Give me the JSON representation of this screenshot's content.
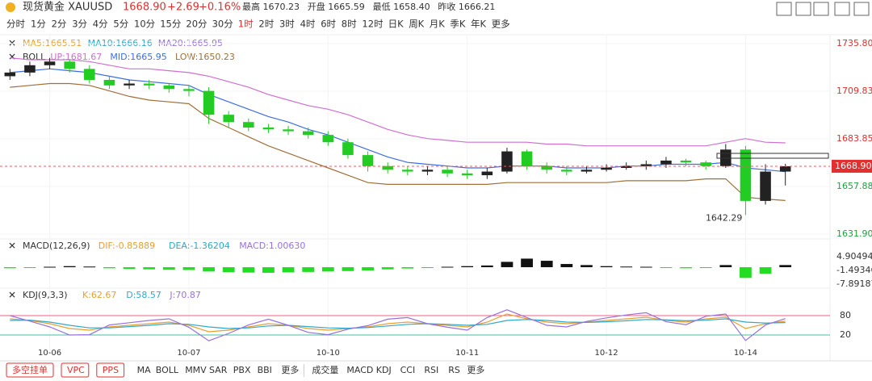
{
  "header": {
    "symbol": "现货黄金 XAUUSD",
    "price": "1668.90",
    "change": "+2.69",
    "pct": "+0.16%",
    "stats": [
      "最高 1670.23",
      "开盘 1665.59",
      "最低 1658.40",
      "昨收 1666.21"
    ]
  },
  "periods": [
    "分时",
    "1分",
    "2分",
    "3分",
    "4分",
    "5分",
    "10分",
    "15分",
    "20分",
    "30分",
    "1时",
    "2时",
    "3时",
    "4时",
    "6时",
    "8时",
    "12时",
    "日K",
    "周K",
    "月K",
    "季K",
    "年K",
    "更多"
  ],
  "active_period": "1时",
  "bottom": {
    "buttons": [
      "多空挂单",
      "VPC",
      "PPS"
    ],
    "main_indicators": [
      "MA",
      "BOLL",
      "MMV",
      "SAR",
      "PBX",
      "BBI",
      "更多"
    ],
    "sub_indicators": [
      "成交量",
      "MACD",
      "KDJ",
      "CCI",
      "RSI",
      "RS",
      "更多"
    ]
  },
  "chart_data": {
    "type": "candlestick",
    "ma_legend": [
      {
        "text": "MA5:1665.51",
        "color": "#e8a030"
      },
      {
        "text": "MA10:1666.16",
        "color": "#30a8c8"
      },
      {
        "text": "MA20:1665.95",
        "color": "#9a70e0"
      }
    ],
    "boll_legend": [
      {
        "text": "BOLL",
        "color": "#333333"
      },
      {
        "text": "UP:1681.67",
        "color": "#d070d0"
      },
      {
        "text": "MID:1665.95",
        "color": "#3d6ee0"
      },
      {
        "text": "LOW:1650.23",
        "color": "#a0703a"
      }
    ],
    "categories": [
      null,
      null,
      "10-06",
      null,
      null,
      null,
      null,
      null,
      null,
      "10-07",
      null,
      null,
      null,
      null,
      null,
      null,
      "10-10",
      null,
      null,
      null,
      null,
      null,
      null,
      "10-11",
      null,
      null,
      null,
      null,
      null,
      null,
      "10-12",
      null,
      null,
      null,
      null,
      null,
      null,
      "10-14",
      null,
      null
    ],
    "candles": [
      [
        1718,
        1722,
        1716,
        1720
      ],
      [
        1720,
        1726,
        1718,
        1724
      ],
      [
        1724,
        1728,
        1722,
        1726
      ],
      [
        1726,
        1727,
        1720,
        1722
      ],
      [
        1722,
        1724,
        1714,
        1716
      ],
      [
        1716,
        1718,
        1711,
        1713
      ],
      [
        1713,
        1716,
        1711,
        1714
      ],
      [
        1714,
        1716,
        1711,
        1713
      ],
      [
        1713,
        1714,
        1709,
        1711
      ],
      [
        1711,
        1713,
        1707,
        1710
      ],
      [
        1710,
        1712,
        1692,
        1697
      ],
      [
        1697,
        1699,
        1690,
        1693
      ],
      [
        1693,
        1695,
        1688,
        1690
      ],
      [
        1690,
        1692,
        1687,
        1689
      ],
      [
        1689,
        1691,
        1686,
        1688
      ],
      [
        1688,
        1690,
        1684,
        1686
      ],
      [
        1686,
        1688,
        1680,
        1682
      ],
      [
        1682,
        1684,
        1673,
        1675
      ],
      [
        1675,
        1677,
        1666,
        1669
      ],
      [
        1669,
        1671,
        1665,
        1667
      ],
      [
        1667,
        1669,
        1664,
        1666
      ],
      [
        1666,
        1669,
        1664,
        1667
      ],
      [
        1667,
        1669,
        1663,
        1665
      ],
      [
        1665,
        1667,
        1662,
        1664
      ],
      [
        1664,
        1668,
        1662,
        1666
      ],
      [
        1666,
        1679,
        1665,
        1677
      ],
      [
        1677,
        1678,
        1667,
        1669
      ],
      [
        1669,
        1671,
        1665,
        1667
      ],
      [
        1667,
        1669,
        1664,
        1666
      ],
      [
        1666,
        1669,
        1665,
        1667
      ],
      [
        1667,
        1670,
        1666,
        1668
      ],
      [
        1668,
        1671,
        1667,
        1669
      ],
      [
        1669,
        1672,
        1667,
        1670
      ],
      [
        1670,
        1674,
        1668,
        1672
      ],
      [
        1672,
        1673,
        1669,
        1671
      ],
      [
        1671,
        1672,
        1667,
        1669
      ],
      [
        1669,
        1681,
        1668,
        1678
      ],
      [
        1678,
        1680,
        1642.29,
        1650
      ],
      [
        1650,
        1670,
        1648,
        1666
      ],
      [
        1666,
        1670.23,
        1658.4,
        1668.9
      ]
    ],
    "overlays": [
      {
        "color": "#d070d0",
        "values": [
          1728,
          1727,
          1727,
          1727,
          1726,
          1724,
          1722,
          1722,
          1721,
          1720,
          1718,
          1715,
          1712,
          1708,
          1705,
          1702,
          1700,
          1697,
          1693,
          1689,
          1686,
          1684,
          1683,
          1682,
          1682,
          1682,
          1682,
          1681,
          1681,
          1680,
          1680,
          1680,
          1680,
          1680,
          1680,
          1680,
          1682,
          1684,
          1682,
          1681.67
        ]
      },
      {
        "color": "#3d6ee0",
        "values": [
          1720,
          1721,
          1722,
          1721,
          1720,
          1718,
          1716,
          1715,
          1714,
          1713,
          1708,
          1704,
          1700,
          1696,
          1693,
          1689,
          1686,
          1682,
          1678,
          1674,
          1671,
          1670,
          1669,
          1668,
          1668,
          1669,
          1669,
          1669,
          1668,
          1668,
          1668,
          1669,
          1669,
          1670,
          1670,
          1670,
          1671,
          1668,
          1667,
          1665.95
        ]
      },
      {
        "color": "#a0703a",
        "values": [
          1712,
          1713,
          1714,
          1714,
          1713,
          1710,
          1707,
          1705,
          1704,
          1703,
          1695,
          1690,
          1685,
          1680,
          1676,
          1672,
          1668,
          1664,
          1660,
          1659,
          1659,
          1659,
          1659,
          1659,
          1659,
          1660,
          1660,
          1660,
          1660,
          1660,
          1660,
          1661,
          1661,
          1661,
          1661,
          1662,
          1662,
          1652,
          1651,
          1650.23
        ]
      }
    ],
    "up_color": "#222222",
    "down_color": "#22cc22",
    "ylim": [
      1631.9,
      1735.8
    ],
    "yticks": [
      {
        "value": 1735.8,
        "label": "1735.80"
      },
      {
        "value": 1709.83,
        "label": "1709.83"
      },
      {
        "value": 1683.85,
        "label": "1683.85"
      },
      {
        "value": 1657.88,
        "label": "1657.88"
      },
      {
        "value": 1631.9,
        "label": "1631.90"
      }
    ],
    "last_price": {
      "value": 1668.9,
      "label": "1668.90"
    },
    "low_annotation": 1642.29
  },
  "macd": {
    "type": "bar",
    "title": "MACD(12,26,9)",
    "legend": [
      {
        "text": "DIF:-0.85889",
        "color": "#e8a030"
      },
      {
        "text": "DEA:-1.36204",
        "color": "#30a8c8"
      },
      {
        "text": "MACD:1.00630",
        "color": "#9a70e0"
      }
    ],
    "values": [
      -0.5,
      -0.3,
      0.2,
      0.5,
      0.3,
      -0.5,
      -0.8,
      -1,
      -1.2,
      -1.3,
      -2,
      -2.3,
      -2.5,
      -2.6,
      -2.4,
      -2.2,
      -2,
      -1.8,
      -1.5,
      -1,
      -0.6,
      -0.3,
      0.2,
      0.5,
      0.8,
      2.5,
      4,
      3,
      1.5,
      1,
      0.5,
      0.3,
      0.2,
      -0.2,
      -0.5,
      -0.3,
      1,
      -5,
      -3,
      1.0063
    ],
    "up_color": "#111111",
    "down_color": "#22dd22",
    "ylim": [
      -7.89187,
      4.90494
    ],
    "yticks": [
      4.90494,
      -1.49346,
      -7.89187
    ]
  },
  "kdj": {
    "type": "line",
    "title": "KDJ(9,3,3)",
    "series": [
      {
        "name": "K:62.67",
        "color": "#e8a030",
        "values": [
          70,
          65,
          55,
          40,
          35,
          45,
          50,
          55,
          60,
          50,
          30,
          35,
          45,
          55,
          50,
          40,
          35,
          40,
          45,
          55,
          60,
          55,
          50,
          45,
          60,
          85,
          70,
          60,
          55,
          60,
          65,
          70,
          75,
          65,
          60,
          70,
          75,
          40,
          55,
          62.67
        ]
      },
      {
        "name": "D:58.57",
        "color": "#30a8c8",
        "values": [
          65,
          66,
          60,
          50,
          42,
          42,
          46,
          50,
          55,
          53,
          45,
          40,
          42,
          48,
          50,
          46,
          42,
          41,
          43,
          48,
          53,
          55,
          53,
          50,
          53,
          65,
          68,
          65,
          60,
          59,
          61,
          64,
          68,
          67,
          64,
          66,
          70,
          60,
          57,
          58.57
        ]
      },
      {
        "name": "J:70.87",
        "color": "#9a70e0",
        "values": [
          80,
          63,
          45,
          20,
          21,
          51,
          58,
          65,
          70,
          44,
          2,
          25,
          51,
          69,
          50,
          28,
          21,
          38,
          49,
          69,
          74,
          55,
          44,
          35,
          74,
          98,
          74,
          50,
          45,
          62,
          73,
          82,
          89,
          61,
          52,
          78,
          85,
          3,
          51,
          70.87
        ]
      }
    ],
    "ylim": [
      0,
      100
    ],
    "yticks": [
      80,
      20
    ]
  }
}
